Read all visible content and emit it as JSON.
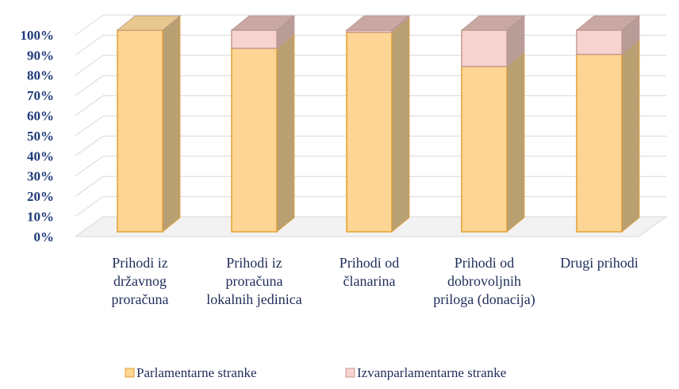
{
  "chart_data": {
    "type": "bar3d_stacked",
    "categories": [
      "Prihodi iz državnog proračuna",
      "Prihodi iz proračuna lokalnih jedinica",
      "Prihodi od članarina",
      "Prihodi od dobrovoljnih priloga (donacija)",
      "Drugi prihodi"
    ],
    "series": [
      {
        "name": "Parlamentarne stranke",
        "color": "#fdd594",
        "values": [
          100,
          91,
          99,
          82,
          88
        ]
      },
      {
        "name": "Izvanparlamentarne stranke",
        "color": "#f6d3cf",
        "values": [
          0,
          9,
          1,
          18,
          12
        ]
      }
    ],
    "ylim": [
      0,
      100
    ],
    "yticks": [
      {
        "value": 0,
        "label": "0%"
      },
      {
        "value": 10,
        "label": "10%"
      },
      {
        "value": 20,
        "label": "20%"
      },
      {
        "value": 30,
        "label": "30%"
      },
      {
        "value": 40,
        "label": "40%"
      },
      {
        "value": 50,
        "label": "50%"
      },
      {
        "value": 60,
        "label": "60%"
      },
      {
        "value": 70,
        "label": "70%"
      },
      {
        "value": 80,
        "label": "80%"
      },
      {
        "value": 90,
        "label": "90%"
      },
      {
        "value": 100,
        "label": "100%"
      }
    ],
    "grid": true,
    "legend": "bottom"
  }
}
